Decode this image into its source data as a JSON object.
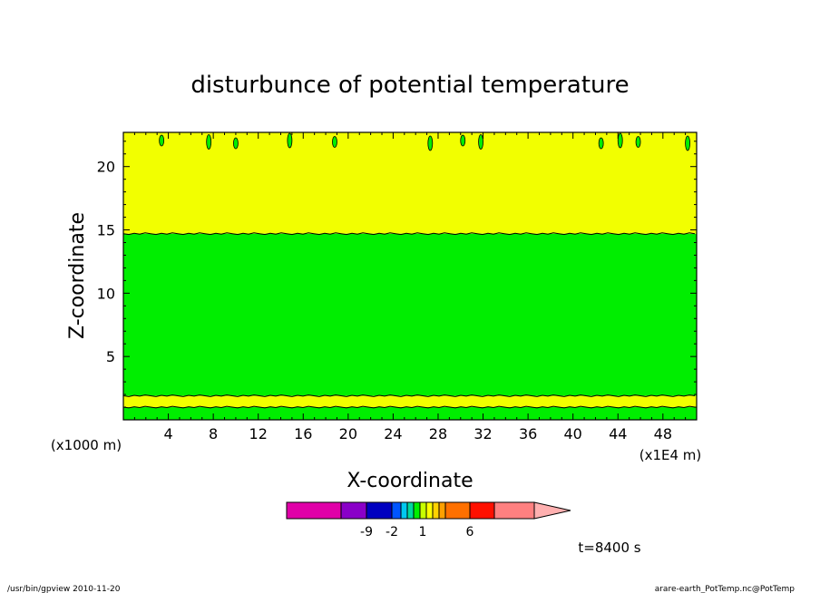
{
  "chart_data": {
    "type": "heatmap",
    "title": "disturbunce of potential temperature",
    "xlabel": "X-coordinate",
    "ylabel": "Z-coordinate",
    "x_unit_left": "(x1000 m)",
    "x_unit_right": "(x1E4 m)",
    "x_ticks": [
      "4",
      "8",
      "12",
      "16",
      "20",
      "24",
      "28",
      "32",
      "36",
      "40",
      "44",
      "48"
    ],
    "y_ticks": [
      "5",
      "10",
      "15",
      "20"
    ],
    "xlim": [
      0,
      51
    ],
    "ylim": [
      0,
      22.7
    ],
    "bands": [
      {
        "z0": 0.0,
        "z1": 1.0,
        "level": "green"
      },
      {
        "z0": 1.0,
        "z1": 1.9,
        "level": "yellow"
      },
      {
        "z0": 1.9,
        "z1": 14.7,
        "level": "green"
      },
      {
        "z0": 14.7,
        "z1": 22.7,
        "level": "yellow"
      }
    ],
    "blobs_x": [
      3.4,
      7.6,
      10.0,
      14.8,
      18.8,
      27.3,
      30.2,
      31.8,
      42.5,
      44.2,
      45.8,
      50.2
    ],
    "colors": {
      "green": "#00ee00",
      "yellow": "#f2ff00",
      "line": "#000000"
    },
    "colorbar": {
      "colors": [
        "#e000a8",
        "#8a00c8",
        "#0000c0",
        "#0055ff",
        "#00c8f0",
        "#00d8a0",
        "#00f000",
        "#c8ff00",
        "#ffff00",
        "#ffd200",
        "#ffa000",
        "#ff7000",
        "#ff1000",
        "#ff8080",
        "#ffb0b0"
      ],
      "labels": [
        "-9",
        "-2",
        "1",
        "6"
      ]
    },
    "time_label": "t=8400 s"
  },
  "footer": {
    "left": "/usr/bin/gpview  2010-11-20",
    "right": "arare-earth_PotTemp.nc@PotTemp"
  }
}
